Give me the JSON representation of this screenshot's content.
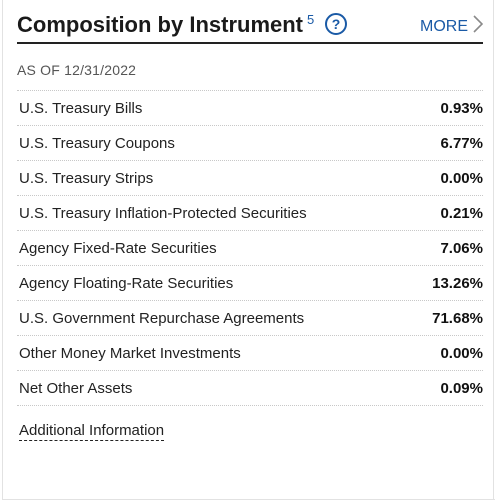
{
  "header": {
    "title": "Composition by Instrument",
    "footnote": "5",
    "help_glyph": "?",
    "more_label": "MORE"
  },
  "as_of": "AS OF 12/31/2022",
  "rows": [
    {
      "label": "U.S. Treasury Bills",
      "value": "0.93%"
    },
    {
      "label": "U.S. Treasury Coupons",
      "value": "6.77%"
    },
    {
      "label": "U.S. Treasury Strips",
      "value": "0.00%"
    },
    {
      "label": "U.S. Treasury Inflation-Protected Securities",
      "value": "0.21%"
    },
    {
      "label": "Agency Fixed-Rate Securities",
      "value": "7.06%"
    },
    {
      "label": "Agency Floating-Rate Securities",
      "value": "13.26%"
    },
    {
      "label": "U.S. Government Repurchase Agreements",
      "value": "71.68%"
    },
    {
      "label": "Other Money Market Investments",
      "value": "0.00%"
    },
    {
      "label": "Net Other Assets",
      "value": "0.09%"
    }
  ],
  "additional_info_label": "Additional Information",
  "colors": {
    "accent": "#1a5aa6",
    "text": "#222222",
    "divider": "#c8c8c8"
  },
  "icons": {
    "help": "question-circle-icon",
    "more": "chevron-right-icon"
  }
}
